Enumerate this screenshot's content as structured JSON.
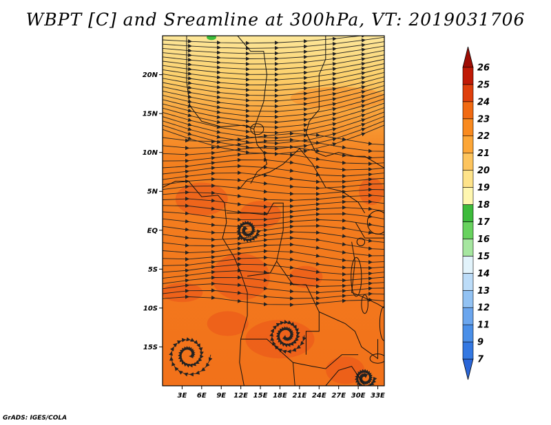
{
  "title": "WBPT [C] and Sreamline at 300hPa, VT: 2019031706",
  "credit": "GrADS: IGES/COLA",
  "lat_ticks": [
    {
      "label": "20N",
      "lat": 20
    },
    {
      "label": "15N",
      "lat": 15
    },
    {
      "label": "10N",
      "lat": 10
    },
    {
      "label": "5N",
      "lat": 5
    },
    {
      "label": "EQ",
      "lat": 0
    },
    {
      "label": "5S",
      "lat": -5
    },
    {
      "label": "10S",
      "lat": -10
    },
    {
      "label": "15S",
      "lat": -15
    }
  ],
  "lon_ticks": [
    {
      "label": "3E",
      "lon": 3
    },
    {
      "label": "6E",
      "lon": 6
    },
    {
      "label": "9E",
      "lon": 9
    },
    {
      "label": "12E",
      "lon": 12
    },
    {
      "label": "15E",
      "lon": 15
    },
    {
      "label": "18E",
      "lon": 18
    },
    {
      "label": "21E",
      "lon": 21
    },
    {
      "label": "24E",
      "lon": 24
    },
    {
      "label": "27E",
      "lon": 27
    },
    {
      "label": "30E",
      "lon": 30
    },
    {
      "label": "33E",
      "lon": 33
    }
  ],
  "map_extent": {
    "lon_min": 0,
    "lon_max": 34,
    "lat_min": -20,
    "lat_max": 25
  },
  "colorbar": {
    "levels": [
      "7",
      "9",
      "11",
      "12",
      "13",
      "14",
      "15",
      "16",
      "17",
      "18",
      "19",
      "20",
      "21",
      "22",
      "23",
      "24",
      "25",
      "26"
    ],
    "colors": [
      "#2a66d8",
      "#3478e2",
      "#4a8fe8",
      "#6ba6ee",
      "#92c2f3",
      "#bcdcf8",
      "#e2f3fb",
      "#a6e6a0",
      "#68d25e",
      "#3dbb3b",
      "#fff7b0",
      "#fee38a",
      "#fdc45d",
      "#fca637",
      "#f98a1f",
      "#f16a12",
      "#df3f0c",
      "#c01a06",
      "#9e0d04"
    ]
  },
  "field_colors": {
    "warm": "#f2711a",
    "hot": "#e9521a",
    "pale": "#fde79a",
    "yellow": "#fbc55a",
    "orange": "#f98f2a",
    "green": "#3dbb3b"
  }
}
